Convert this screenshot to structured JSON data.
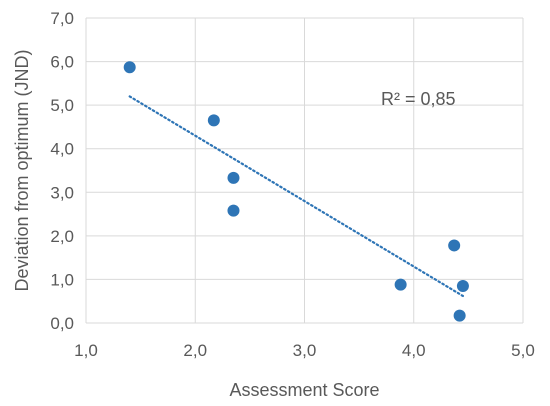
{
  "chart_data": {
    "type": "scatter",
    "title": "",
    "xlabel": "Assessment Score",
    "ylabel": "Deviation from optimum (JND)",
    "xlim": [
      1.0,
      5.0
    ],
    "ylim": [
      0.0,
      7.0
    ],
    "grid": true,
    "x_ticks": [
      "1,0",
      "2,0",
      "3,0",
      "4,0",
      "5,0"
    ],
    "y_ticks": [
      "0,0",
      "1,0",
      "2,0",
      "3,0",
      "4,0",
      "5,0",
      "6,0",
      "7,0"
    ],
    "series": [
      {
        "points": [
          {
            "x": 1.4,
            "y": 5.87
          },
          {
            "x": 2.17,
            "y": 4.65
          },
          {
            "x": 2.35,
            "y": 3.33
          },
          {
            "x": 2.35,
            "y": 2.58
          },
          {
            "x": 3.88,
            "y": 0.88
          },
          {
            "x": 4.37,
            "y": 1.78
          },
          {
            "x": 4.45,
            "y": 0.85
          },
          {
            "x": 4.42,
            "y": 0.17
          }
        ]
      }
    ],
    "trendline": {
      "type": "linear",
      "start": {
        "x": 1.4,
        "y": 5.2
      },
      "end": {
        "x": 4.45,
        "y": 0.62
      }
    },
    "annotations": [
      {
        "text": "R² = 0,85",
        "x": 3.7,
        "y": 5.0
      }
    ],
    "colors": {
      "marker": "#2e75b6",
      "trendline": "#2e75b6",
      "grid": "#d9d9d9",
      "text": "#595959"
    }
  }
}
